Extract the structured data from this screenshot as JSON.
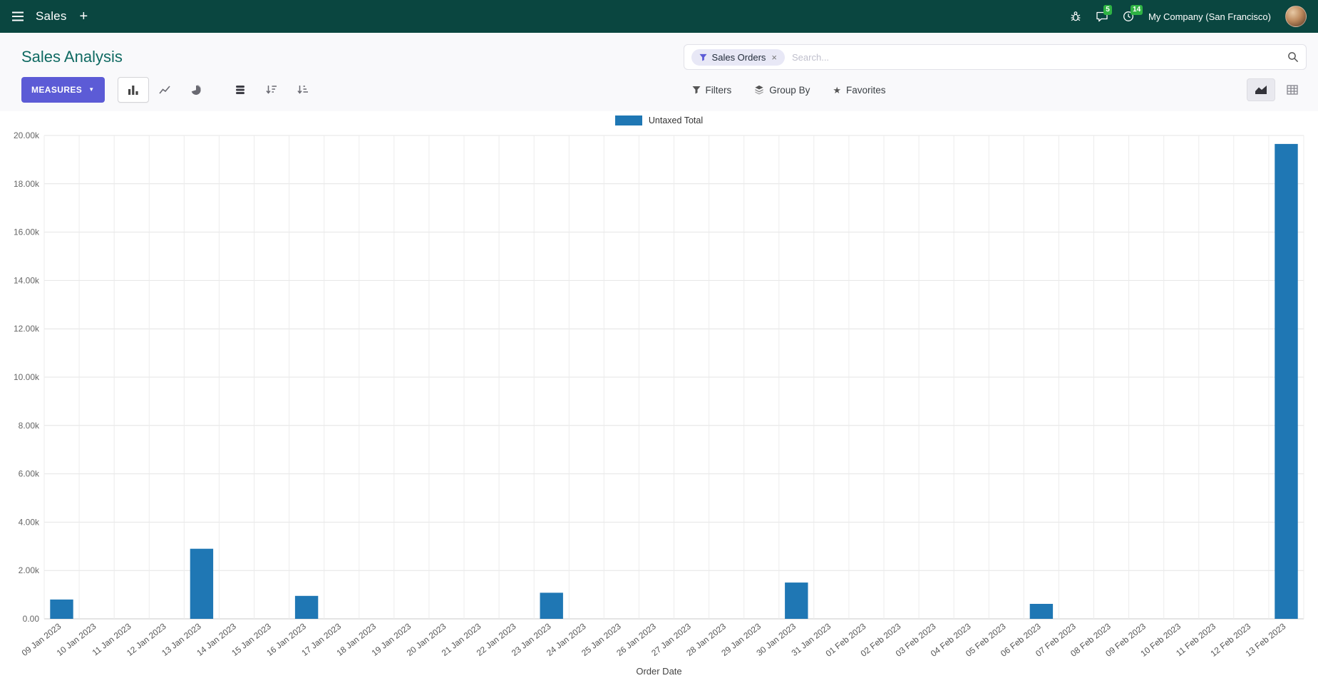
{
  "theme": {
    "navbar_bg": "#0a4640",
    "accent": "#5c5bd6",
    "badge_green": "#2fb344",
    "bar_color": "#1f77b4",
    "title_color": "#0f6a62"
  },
  "navbar": {
    "app_name": "Sales",
    "messages_count": "5",
    "activities_count": "14",
    "company": "My Company (San Francisco)"
  },
  "control_panel": {
    "title": "Sales Analysis",
    "measures_button": "MEASURES",
    "filters": "Filters",
    "group_by": "Group By",
    "favorites": "Favorites",
    "search": {
      "facet_label": "Sales Orders",
      "facet_remove": "×",
      "placeholder": "Search..."
    }
  },
  "chart_data": {
    "type": "bar",
    "grid": true,
    "legend_position": "top",
    "xlabel": "Order Date",
    "ylabel": "",
    "ylim": [
      0,
      20000
    ],
    "ytick_step": 2000,
    "categories": [
      "09 Jan 2023",
      "10 Jan 2023",
      "11 Jan 2023",
      "12 Jan 2023",
      "13 Jan 2023",
      "14 Jan 2023",
      "15 Jan 2023",
      "16 Jan 2023",
      "17 Jan 2023",
      "18 Jan 2023",
      "19 Jan 2023",
      "20 Jan 2023",
      "21 Jan 2023",
      "22 Jan 2023",
      "23 Jan 2023",
      "24 Jan 2023",
      "25 Jan 2023",
      "26 Jan 2023",
      "27 Jan 2023",
      "28 Jan 2023",
      "29 Jan 2023",
      "30 Jan 2023",
      "31 Jan 2023",
      "01 Feb 2023",
      "02 Feb 2023",
      "03 Feb 2023",
      "04 Feb 2023",
      "05 Feb 2023",
      "06 Feb 2023",
      "07 Feb 2023",
      "08 Feb 2023",
      "09 Feb 2023",
      "10 Feb 2023",
      "11 Feb 2023",
      "12 Feb 2023",
      "13 Feb 2023"
    ],
    "series": [
      {
        "name": "Untaxed Total",
        "color": "#1f77b4",
        "values": [
          800,
          0,
          0,
          0,
          2900,
          0,
          0,
          950,
          0,
          0,
          0,
          0,
          0,
          0,
          1080,
          0,
          0,
          0,
          0,
          0,
          0,
          1500,
          0,
          0,
          0,
          0,
          0,
          0,
          620,
          0,
          0,
          0,
          0,
          0,
          0,
          19650
        ]
      }
    ]
  }
}
